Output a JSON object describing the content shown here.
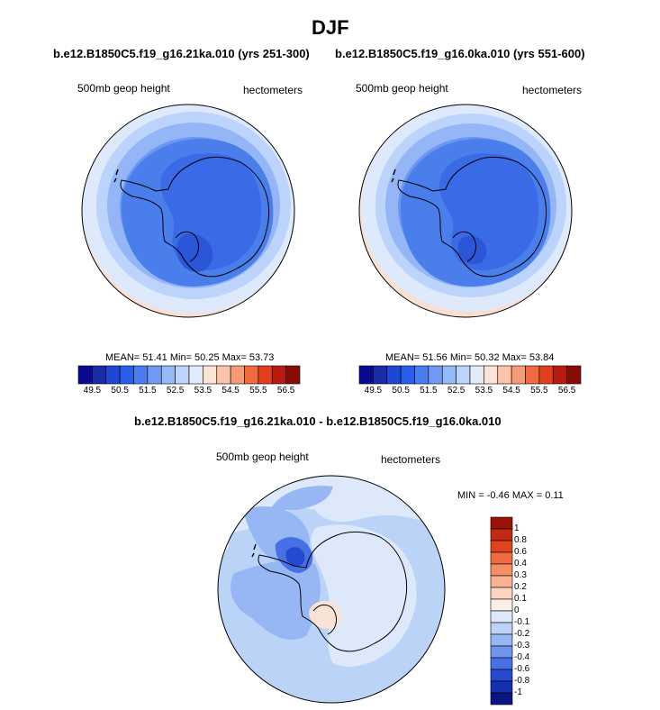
{
  "title": "DJF",
  "panels": [
    {
      "subtitle": "b.e12.B1850C5.f19_g16.21ka.010 (yrs 251-300)",
      "left_label": "500mb geop height",
      "right_label": "hectometers",
      "stats": "MEAN=  51.41  Min=  50.25  Max=  53.73"
    },
    {
      "subtitle": "b.e12.B1850C5.f19_g16.0ka.010 (yrs 551-600)",
      "left_label": "500mb geop height",
      "right_label": "hectometers",
      "stats": "MEAN=  51.56  Min=  50.32  Max=  53.84"
    }
  ],
  "colorbar": {
    "ticks": [
      "49.5",
      "50.5",
      "51.5",
      "52.5",
      "53.5",
      "54.5",
      "55.5",
      "56.5"
    ],
    "colors": [
      "#0a0a8c",
      "#1a2aa8",
      "#1f46d4",
      "#2b5ee8",
      "#4a7ef0",
      "#6e9af5",
      "#94b8f8",
      "#bcd3fb",
      "#e1ebfc",
      "#fde3d6",
      "#fbc3a8",
      "#f79a77",
      "#f06a43",
      "#e0401f",
      "#b81c10",
      "#8a0c06"
    ]
  },
  "diff": {
    "subtitle": "b.e12.B1850C5.f19_g16.21ka.010 - b.e12.B1850C5.f19_g16.0ka.010",
    "left_label": "500mb geop height",
    "right_label": "hectometers",
    "minmax": "MIN =  -0.46 MAX =   0.11",
    "legend_labels": [
      "1",
      "0.8",
      "0.6",
      "0.4",
      "0.3",
      "0.2",
      "0.1",
      "0",
      "-0.1",
      "-0.2",
      "-0.3",
      "-0.4",
      "-0.6",
      "-0.8",
      "-1"
    ],
    "legend_colors": [
      "#9a1208",
      "#c22a14",
      "#e0441f",
      "#f06a3f",
      "#f78e63",
      "#fab293",
      "#fcd4c0",
      "#f8efe9",
      "#dde9fb",
      "#bcd2f8",
      "#97b6f4",
      "#6f95ee",
      "#4670e4",
      "#244ad2",
      "#1630b0",
      "#0a1482"
    ]
  },
  "map_colors": {
    "field_outer": "#f9dfd2",
    "field_1": "#dfe9fc",
    "field_2": "#bcd3fb",
    "field_3": "#94b6f7",
    "field_4": "#6b96f2",
    "field_5": "#4a7eeb",
    "field_6": "#3b6ae6",
    "field_7": "#2c55d8",
    "diff_bg": "#bcd3f8",
    "diff_light": "#dde9fb",
    "diff_mid": "#97b6f4",
    "diff_dark": "#4670e4",
    "diff_darker": "#244ad2",
    "diff_pos": "#f8e3d6"
  }
}
